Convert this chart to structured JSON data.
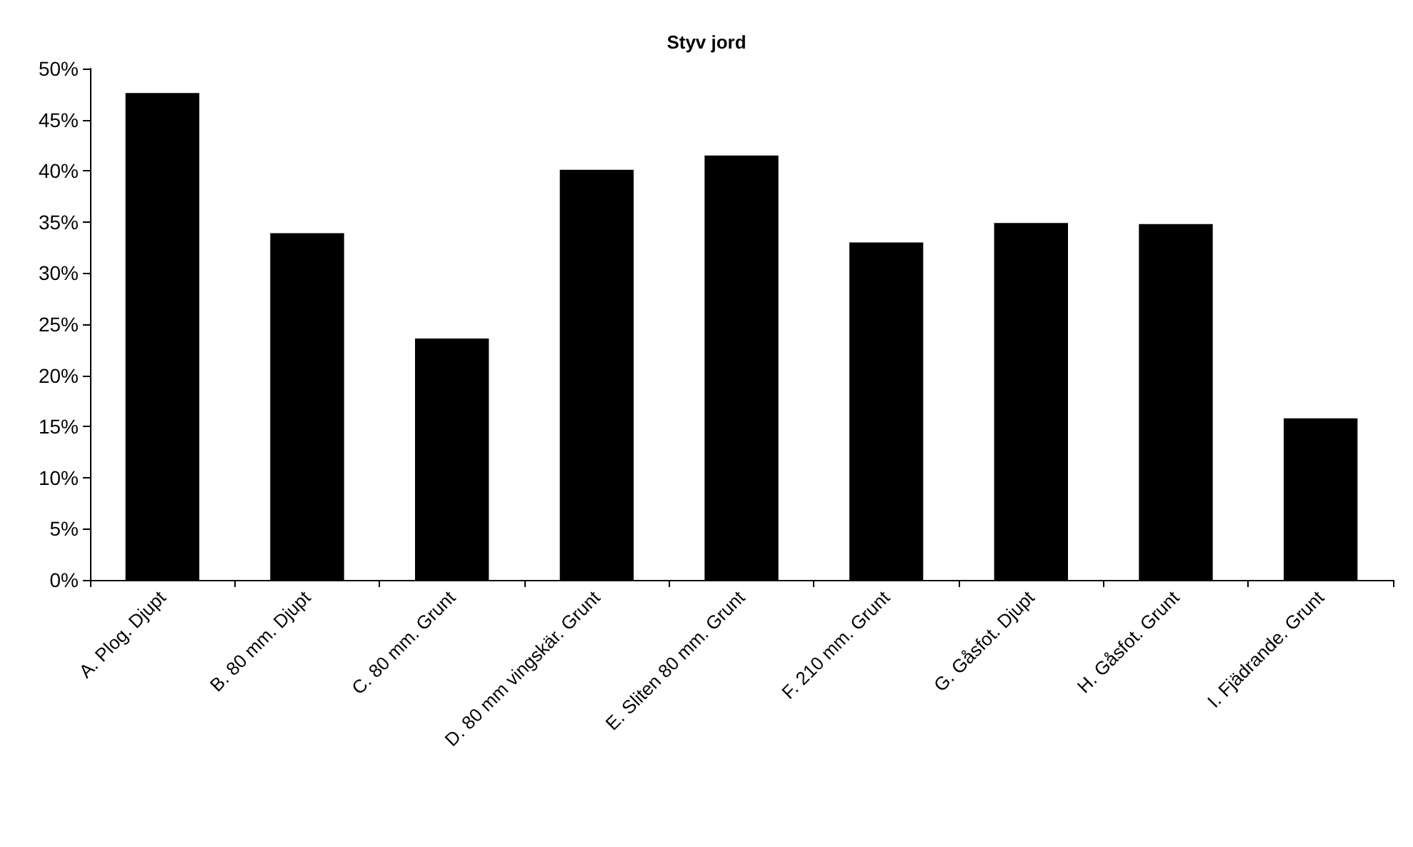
{
  "chart_data": {
    "type": "bar",
    "title": "Styv jord",
    "categories": [
      "A. Plog. Djupt",
      "B. 80 mm. Djupt",
      "C. 80 mm. Grunt",
      "D. 80 mm vingskär. Grunt",
      "E. Sliten 80 mm. Grunt",
      "F. 210 mm. Grunt",
      "G. Gåsfot. Djupt",
      "H. Gåsfot. Grunt",
      "I. Fjädrande. Grunt"
    ],
    "values": [
      47.6,
      33.9,
      23.6,
      40.1,
      41.5,
      33.0,
      34.9,
      34.8,
      15.8
    ],
    "color": "#000000",
    "ylim": [
      0,
      50
    ],
    "yticks": [
      {
        "value": 0,
        "label": "0%"
      },
      {
        "value": 5,
        "label": "5%"
      },
      {
        "value": 10,
        "label": "10%"
      },
      {
        "value": 15,
        "label": "15%"
      },
      {
        "value": 20,
        "label": "20%"
      },
      {
        "value": 25,
        "label": "25%"
      },
      {
        "value": 30,
        "label": "30%"
      },
      {
        "value": 35,
        "label": "35%"
      },
      {
        "value": 40,
        "label": "40%"
      },
      {
        "value": 45,
        "label": "45%"
      },
      {
        "value": 50,
        "label": "50%"
      }
    ],
    "grid": false
  }
}
